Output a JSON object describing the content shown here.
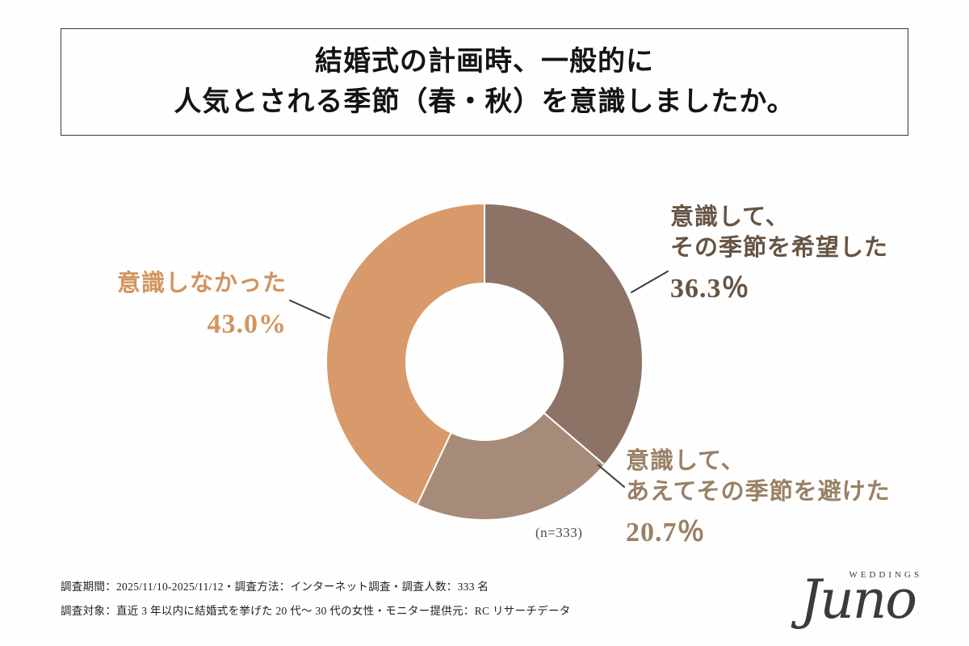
{
  "title": {
    "line1": "結婚式の計画時、一般的に",
    "line2": "人気とされる季節（春・秋）を意識しましたか。"
  },
  "chart_data": {
    "type": "pie",
    "subtype": "donut",
    "start_angle_deg": -90,
    "direction": "clockwise",
    "sample_label": "(n=333)",
    "segments": [
      {
        "label": "意識して、その季節を希望した",
        "label_lines": [
          "意識して、",
          "その季節を希望した"
        ],
        "value": 36.3,
        "display": "36.3％",
        "color": "#8c7365",
        "text_color": "#665445"
      },
      {
        "label": "意識して、あえてその季節を避けた",
        "label_lines": [
          "意識して、",
          "あえてその季節を避けた"
        ],
        "value": 20.7,
        "display": "20.7％",
        "color": "#a68b78",
        "text_color": "#9a8065"
      },
      {
        "label": "意識しなかった",
        "label_lines": [
          "意識しなかった"
        ],
        "value": 43.0,
        "display": "43.0%",
        "color": "#d89a6a",
        "text_color": "#d0955f"
      }
    ]
  },
  "footer": {
    "line1": "調査期間：2025/11/10-2025/11/12・調査方法：インターネット調査・調査人数：333 名",
    "line2": "調査対象：直近 3 年以内に結婚式を挙げた 20 代〜 30 代の女性・モニター提供元：RC リサーチデータ"
  },
  "logo": {
    "name": "Juno",
    "sub": "WEDDINGS"
  }
}
